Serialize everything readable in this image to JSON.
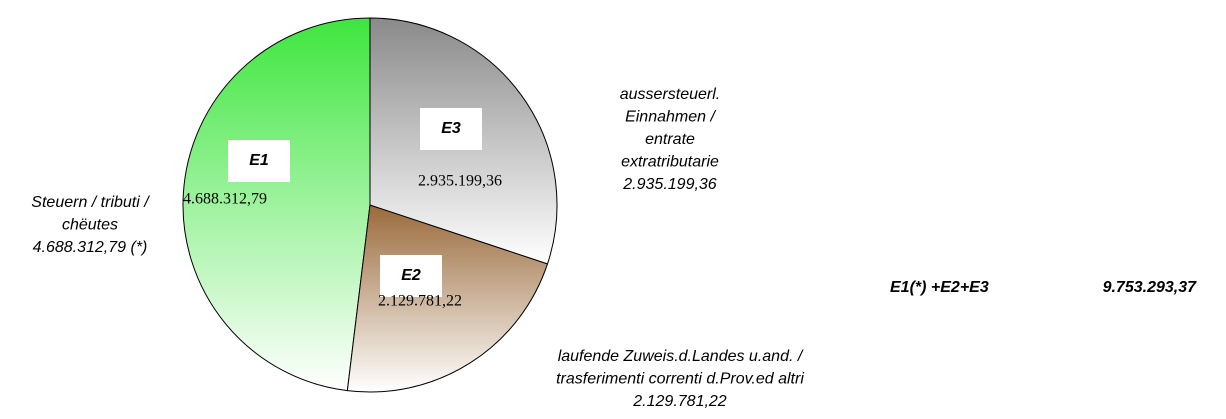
{
  "chart_data": {
    "type": "pie",
    "categories": [
      "E1",
      "E2",
      "E3"
    ],
    "values": [
      4688312.79,
      2129781.22,
      2935199.36
    ],
    "value_labels": [
      "4.688.312,79",
      "2.129.781,22",
      "2.935.199,36"
    ],
    "outer_labels": [
      [
        "Steuern / tributi /",
        "chëutes",
        "4.688.312,79 (*)"
      ],
      [
        "laufende Zuweis.d.Landes u.and. /",
        "trasferimenti correnti d.Prov.ed altri",
        "2.129.781,22"
      ],
      [
        "aussersteuerl.",
        "Einnahmen  /",
        "entrate",
        "extratributarie",
        "2.935.199,36"
      ]
    ],
    "colors": [
      "#3ee63e",
      "#9a6a3a",
      "#8a8a8a"
    ],
    "total_label": "E1(*) +E2+E3",
    "total": {
      "value": 9753293.37,
      "label": "9.753.293,37"
    }
  }
}
